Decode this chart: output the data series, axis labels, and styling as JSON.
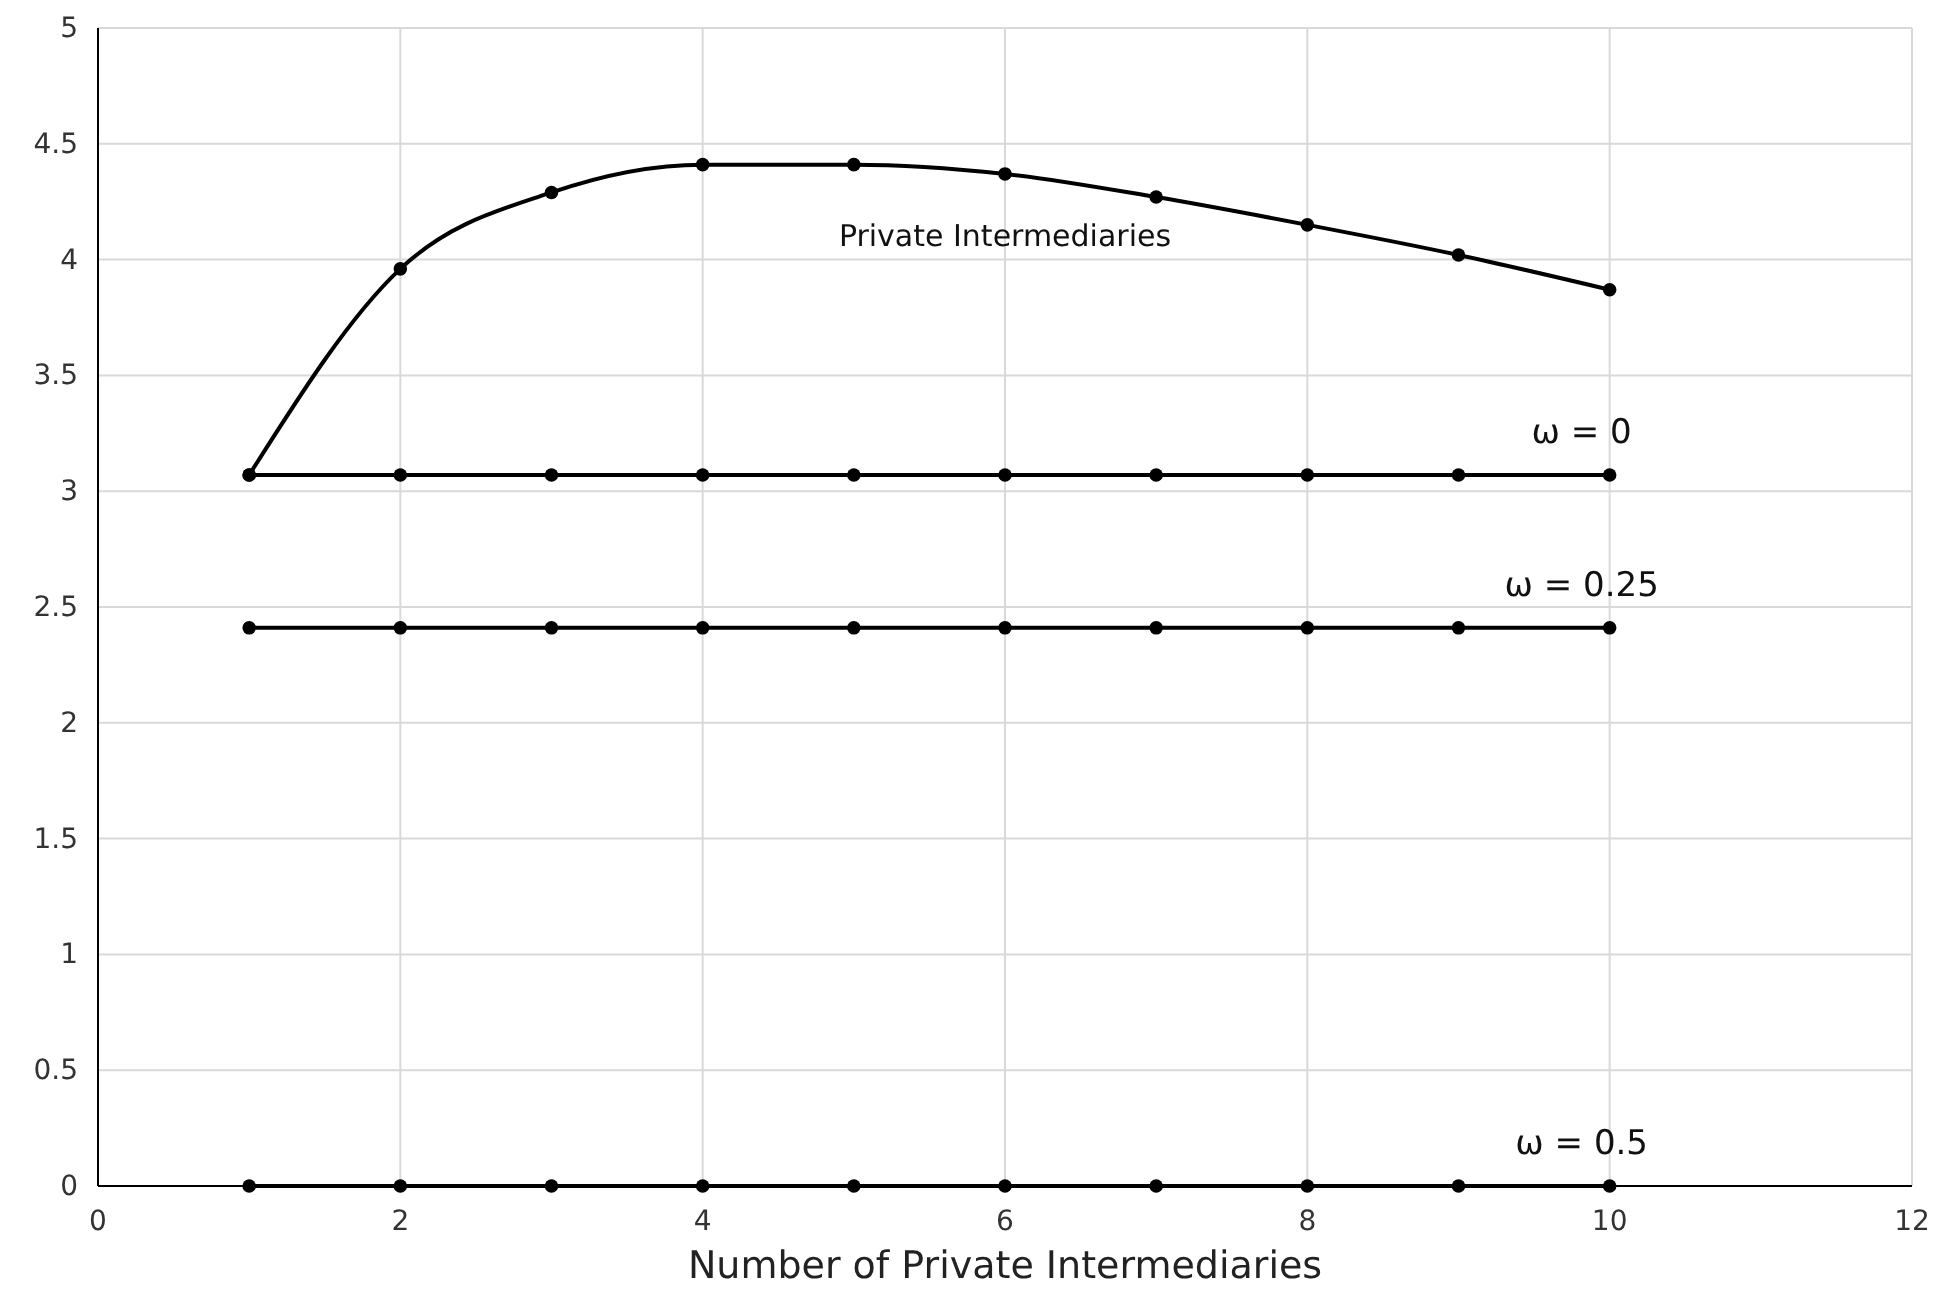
{
  "chart_data": {
    "type": "line",
    "xlabel": "Number of Private Intermediaries",
    "x": [
      1,
      2,
      3,
      4,
      5,
      6,
      7,
      8,
      9,
      10
    ],
    "series": [
      {
        "name": "Private Intermediaries",
        "color": "#000000",
        "values": [
          3.07,
          3.96,
          4.29,
          4.41,
          4.41,
          4.37,
          4.27,
          4.15,
          4.02,
          3.87
        ]
      },
      {
        "name": "ω = 0",
        "color": "#000000",
        "values": [
          3.07,
          3.07,
          3.07,
          3.07,
          3.07,
          3.07,
          3.07,
          3.07,
          3.07,
          3.07
        ]
      },
      {
        "name": "ω = 0.25",
        "color": "#000000",
        "values": [
          2.41,
          2.41,
          2.41,
          2.41,
          2.41,
          2.41,
          2.41,
          2.41,
          2.41,
          2.41
        ]
      },
      {
        "name": "ω = 0.5",
        "color": "#000000",
        "values": [
          0,
          0,
          0,
          0,
          0,
          0,
          0,
          0,
          0,
          0
        ]
      }
    ],
    "xlim": [
      0,
      12
    ],
    "xticks": [
      0,
      2,
      4,
      6,
      8,
      10,
      12
    ],
    "ylim": [
      0,
      5
    ],
    "yticks": [
      0,
      0.5,
      1,
      1.5,
      2,
      2.5,
      3,
      3.5,
      4,
      4.5,
      5
    ],
    "grid": true,
    "marker": "circle",
    "line_style": "solid"
  }
}
